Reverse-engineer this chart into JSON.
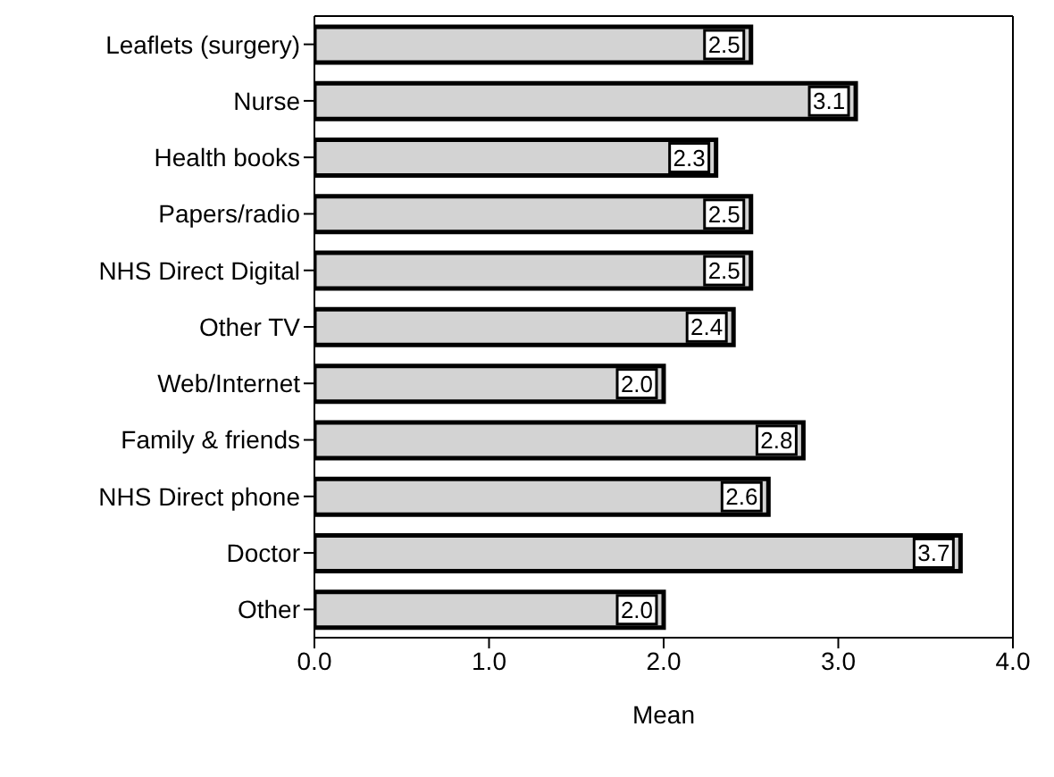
{
  "chart_data": {
    "type": "bar",
    "orientation": "horizontal",
    "xlabel": "Mean",
    "categories": [
      "Leaflets (surgery)",
      "Nurse",
      "Health books",
      "Papers/radio",
      "NHS Direct Digital",
      "Other TV",
      "Web/Internet",
      "Family & friends",
      "NHS Direct phone",
      "Doctor",
      "Other"
    ],
    "values": [
      2.5,
      3.1,
      2.3,
      2.5,
      2.5,
      2.4,
      2.0,
      2.8,
      2.6,
      3.7,
      2.0
    ],
    "color": "#d3d3d3",
    "value_labels": [
      "2.5",
      "3.1",
      "2.3",
      "2.5",
      "2.5",
      "2.4",
      "2.0",
      "2.8",
      "2.6",
      "3.7",
      "2.0"
    ],
    "xlim": [
      0,
      4
    ],
    "xticks": [
      {
        "value": 0,
        "label": "0.0"
      },
      {
        "value": 1,
        "label": "1.0"
      },
      {
        "value": 2,
        "label": "2.0"
      },
      {
        "value": 3,
        "label": "3.0"
      },
      {
        "value": 4,
        "label": "4.0"
      }
    ],
    "grid": false
  }
}
